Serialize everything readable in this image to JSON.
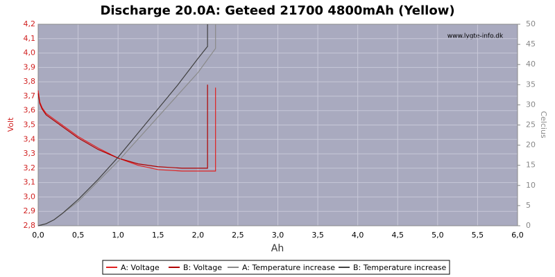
{
  "chart_data": {
    "type": "line",
    "title": "Discharge 20.0A: Geteed 21700 4800mAh (Yellow)",
    "watermark": "www.lygte-info.dk",
    "x_label": "Ah",
    "y_label": "Volt",
    "y2_label": "Celcius",
    "xlim": [
      0,
      6
    ],
    "ylim": [
      2.8,
      4.2
    ],
    "y2lim": [
      0,
      50
    ],
    "xticks": [
      {
        "value": 0,
        "label": "0,0"
      },
      {
        "value": 0.5,
        "label": "0,5"
      },
      {
        "value": 1,
        "label": "1,0"
      },
      {
        "value": 1.5,
        "label": "1,5"
      },
      {
        "value": 2,
        "label": "2,0"
      },
      {
        "value": 2.5,
        "label": "2,5"
      },
      {
        "value": 3,
        "label": "3,0"
      },
      {
        "value": 3.5,
        "label": "3,5"
      },
      {
        "value": 4,
        "label": "4,0"
      },
      {
        "value": 4.5,
        "label": "4,5"
      },
      {
        "value": 5,
        "label": "5,0"
      },
      {
        "value": 5.5,
        "label": "5,5"
      },
      {
        "value": 6,
        "label": "6,0"
      }
    ],
    "yticks": [
      {
        "value": 2.8,
        "label": "2,8"
      },
      {
        "value": 2.9,
        "label": "2,9"
      },
      {
        "value": 3,
        "label": "3,0"
      },
      {
        "value": 3.1,
        "label": "3,1"
      },
      {
        "value": 3.2,
        "label": "3,2"
      },
      {
        "value": 3.3,
        "label": "3,3"
      },
      {
        "value": 3.4,
        "label": "3,4"
      },
      {
        "value": 3.5,
        "label": "3,5"
      },
      {
        "value": 3.6,
        "label": "3,6"
      },
      {
        "value": 3.7,
        "label": "3,7"
      },
      {
        "value": 3.8,
        "label": "3,8"
      },
      {
        "value": 3.9,
        "label": "3,9"
      },
      {
        "value": 4,
        "label": "4,0"
      },
      {
        "value": 4.1,
        "label": "4,1"
      },
      {
        "value": 4.2,
        "label": "4,2"
      }
    ],
    "y2ticks": [
      0,
      5,
      10,
      15,
      20,
      25,
      30,
      35,
      40,
      45,
      50
    ],
    "grid": true,
    "series": [
      {
        "name": "A: Voltage",
        "color": "#e02020",
        "axis": "y",
        "x": [
          0,
          0.02,
          0.05,
          0.1,
          0.2,
          0.3,
          0.5,
          0.75,
          1.0,
          1.25,
          1.5,
          1.8,
          2.0,
          2.21,
          2.22,
          2.22
        ],
        "values": [
          3.74,
          3.66,
          3.62,
          3.58,
          3.54,
          3.5,
          3.42,
          3.34,
          3.27,
          3.22,
          3.19,
          3.18,
          3.18,
          3.18,
          3.18,
          3.76
        ]
      },
      {
        "name": "B: Voltage",
        "color": "#b00000",
        "axis": "y",
        "x": [
          0,
          0.02,
          0.05,
          0.1,
          0.2,
          0.3,
          0.5,
          0.75,
          1.0,
          1.25,
          1.5,
          1.8,
          2.0,
          2.12,
          2.12
        ],
        "values": [
          3.72,
          3.65,
          3.61,
          3.57,
          3.53,
          3.49,
          3.41,
          3.33,
          3.27,
          3.23,
          3.21,
          3.2,
          3.2,
          3.2,
          3.78
        ]
      },
      {
        "name": "A: Temperature increase",
        "color": "#8a8a8a",
        "axis": "y2",
        "x": [
          0,
          0.1,
          0.2,
          0.3,
          0.5,
          0.75,
          1.0,
          1.25,
          1.5,
          1.75,
          2.0,
          2.22,
          2.22
        ],
        "values": [
          0,
          0.5,
          1.5,
          3,
          6,
          11,
          16,
          21.5,
          27,
          32.5,
          38,
          44,
          50
        ]
      },
      {
        "name": "B: Temperature increase",
        "color": "#404040",
        "axis": "y2",
        "x": [
          0,
          0.1,
          0.2,
          0.3,
          0.5,
          0.75,
          1.0,
          1.25,
          1.5,
          1.75,
          2.0,
          2.12,
          2.12
        ],
        "values": [
          0,
          0.5,
          1.5,
          3,
          6.5,
          11.5,
          17,
          23,
          29,
          35,
          41.5,
          44.5,
          50
        ]
      }
    ]
  }
}
